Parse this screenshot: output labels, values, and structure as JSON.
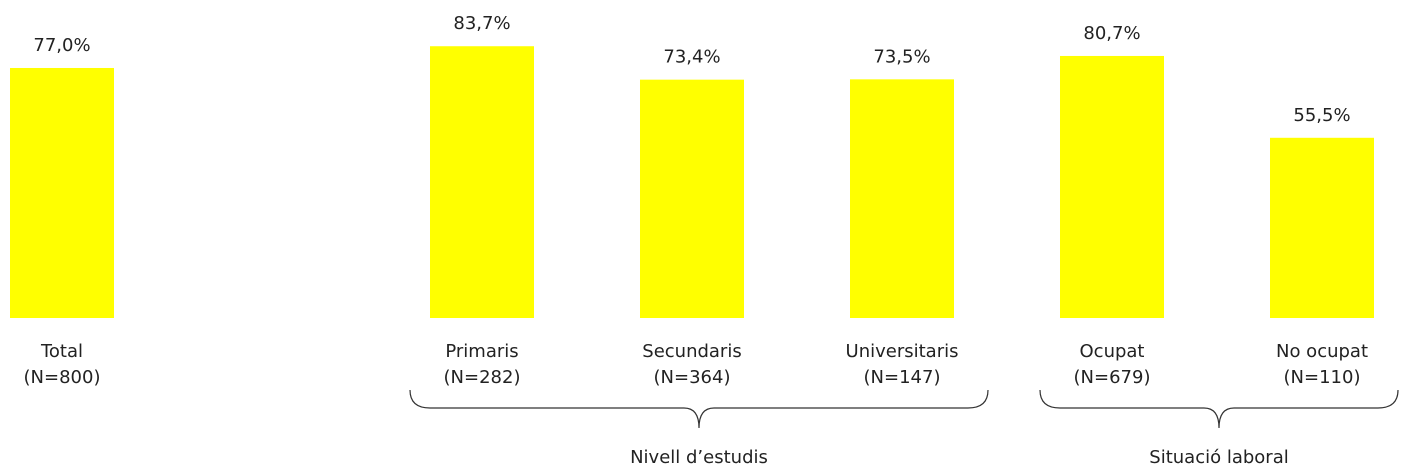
{
  "chart_data": {
    "type": "bar",
    "categories": [
      "Total",
      null,
      "Primaris",
      "Secundaris",
      "Universitaris",
      "Ocupat",
      "No ocupat"
    ],
    "n_labels": [
      "(N=800)",
      null,
      "(N=282)",
      "(N=364)",
      "(N=147)",
      "(N=679)",
      "(N=110)"
    ],
    "values": [
      77.0,
      null,
      83.7,
      73.4,
      73.5,
      80.7,
      55.5
    ],
    "value_labels": [
      "77,0%",
      null,
      "83,7%",
      "73,4%",
      "73,5%",
      "80,7%",
      "55,5%"
    ],
    "color": "#ffff00",
    "ylim": [
      0,
      100
    ],
    "groups": [
      {
        "name": "Nivell d’estudis",
        "categories": [
          "Primaris",
          "Secundaris",
          "Universitaris"
        ]
      },
      {
        "name": "Situació laboral",
        "categories": [
          "Ocupat",
          "No ocupat"
        ]
      }
    ]
  }
}
